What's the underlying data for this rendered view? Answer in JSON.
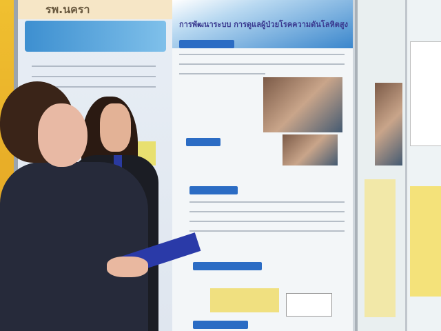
{
  "scene": {
    "description_tags": [
      "poster-exhibition",
      "two-women",
      "research-posters"
    ],
    "colors": {
      "poster_blue": "#2b6cc4",
      "suit": "#262a3a",
      "hair": "#3a2418"
    }
  },
  "posters": {
    "left_header": "รพ.นครา",
    "main_title": "การพัฒนาระบบ การดูแลผู้ป่วยโรคความดันโลหิตสูง"
  }
}
